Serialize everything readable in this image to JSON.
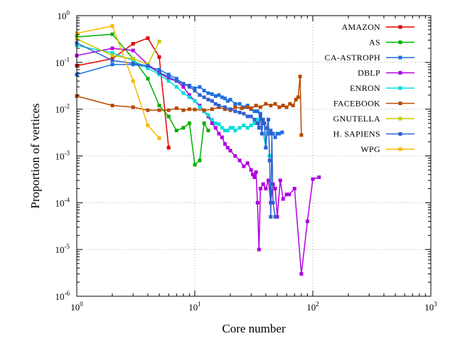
{
  "chart_data": {
    "type": "line",
    "title": "",
    "xlabel": "Core number",
    "ylabel": "Proportion of vertices",
    "xscale": "log",
    "yscale": "log",
    "xlim": [
      1,
      1000
    ],
    "ylim": [
      1e-06,
      1
    ],
    "grid": true,
    "legend_position": "top-right",
    "x_ticks": [
      {
        "base": "10",
        "exp": "0",
        "value": 1
      },
      {
        "base": "10",
        "exp": "1",
        "value": 10
      },
      {
        "base": "10",
        "exp": "2",
        "value": 100
      },
      {
        "base": "10",
        "exp": "3",
        "value": 1000
      }
    ],
    "y_ticks": [
      {
        "base": "10",
        "exp": "-6",
        "value": 1e-06
      },
      {
        "base": "10",
        "exp": "-5",
        "value": 1e-05
      },
      {
        "base": "10",
        "exp": "-4",
        "value": 0.0001
      },
      {
        "base": "10",
        "exp": "-3",
        "value": 0.001
      },
      {
        "base": "10",
        "exp": "-2",
        "value": 0.01
      },
      {
        "base": "10",
        "exp": "-1",
        "value": 0.1
      },
      {
        "base": "10",
        "exp": "0",
        "value": 1
      }
    ],
    "series": [
      {
        "name": "AMAZON",
        "color": "#e00000",
        "x": [
          1,
          2,
          3,
          4,
          5,
          6
        ],
        "y": [
          0.085,
          0.12,
          0.25,
          0.33,
          0.13,
          0.0015
        ]
      },
      {
        "name": "AS",
        "color": "#00b000",
        "x": [
          1,
          2,
          3,
          4,
          5,
          6,
          7,
          8,
          9,
          10,
          11,
          12,
          13
        ],
        "y": [
          0.35,
          0.4,
          0.12,
          0.045,
          0.012,
          0.007,
          0.0035,
          0.004,
          0.005,
          0.00065,
          0.0008,
          0.005,
          0.0035
        ]
      },
      {
        "name": "CA-ASTROPH",
        "color": "#1a6fe0",
        "x": [
          1,
          2,
          3,
          4,
          5,
          6,
          7,
          8,
          9,
          10,
          11,
          12,
          13,
          14,
          15,
          16,
          17,
          18,
          19,
          20,
          22,
          24,
          26,
          28,
          30,
          32,
          34,
          36,
          38,
          40,
          42,
          44,
          46,
          48,
          50,
          52,
          55
        ],
        "y": [
          0.055,
          0.09,
          0.09,
          0.08,
          0.07,
          0.055,
          0.045,
          0.035,
          0.032,
          0.028,
          0.03,
          0.025,
          0.022,
          0.021,
          0.019,
          0.02,
          0.018,
          0.017,
          0.015,
          0.016,
          0.013,
          0.013,
          0.011,
          0.012,
          0.01,
          0.009,
          0.009,
          0.007,
          0.005,
          0.004,
          0.003,
          0.0035,
          0.003,
          0.0025,
          0.003,
          0.003,
          0.0032
        ]
      },
      {
        "name": "DBLP",
        "color": "#b000e0",
        "x": [
          1,
          2,
          3,
          4,
          5,
          6,
          7,
          8,
          9,
          10,
          11,
          12,
          13,
          14,
          15,
          16,
          17,
          18,
          19,
          20,
          22,
          24,
          26,
          28,
          30,
          31,
          32,
          33,
          34,
          35,
          36,
          38,
          40,
          42,
          44,
          46,
          48,
          50,
          53,
          56,
          60,
          63,
          70,
          80,
          90,
          100,
          113
        ],
        "y": [
          0.14,
          0.2,
          0.18,
          0.09,
          0.06,
          0.045,
          0.04,
          0.03,
          0.02,
          0.015,
          0.012,
          0.009,
          0.007,
          0.005,
          0.004,
          0.003,
          0.0025,
          0.0018,
          0.0015,
          0.0013,
          0.001,
          0.0008,
          0.0006,
          0.0007,
          0.0005,
          0.0004,
          0.00035,
          0.00045,
          0.0001,
          1e-05,
          0.0002,
          0.00025,
          0.0002,
          0.0003,
          0.0001,
          0.00025,
          0.0002,
          5e-05,
          0.0003,
          0.00012,
          0.00015,
          0.00015,
          0.0002,
          3e-06,
          4e-05,
          0.00032,
          0.00035
        ]
      },
      {
        "name": "ENRON",
        "color": "#00dddd",
        "x": [
          1,
          2,
          3,
          4,
          5,
          6,
          7,
          8,
          9,
          10,
          11,
          12,
          13,
          14,
          15,
          16,
          17,
          18,
          19,
          20,
          21,
          22,
          24,
          26,
          28,
          30,
          32,
          34,
          36,
          38,
          40,
          42,
          43
        ],
        "y": [
          0.23,
          0.16,
          0.11,
          0.075,
          0.055,
          0.04,
          0.03,
          0.022,
          0.018,
          0.015,
          0.011,
          0.009,
          0.0075,
          0.006,
          0.005,
          0.0048,
          0.004,
          0.0035,
          0.0035,
          0.004,
          0.004,
          0.0035,
          0.004,
          0.0045,
          0.004,
          0.0045,
          0.005,
          0.006,
          0.004,
          0.003,
          0.0015,
          0.006,
          0.001
        ]
      },
      {
        "name": "FACEBOOK",
        "color": "#b84a00",
        "x": [
          1,
          2,
          3,
          4,
          5,
          6,
          7,
          8,
          9,
          10,
          12,
          14,
          16,
          18,
          20,
          22,
          25,
          28,
          30,
          33,
          36,
          40,
          44,
          48,
          52,
          56,
          60,
          64,
          68,
          72,
          75,
          78,
          80
        ],
        "y": [
          0.019,
          0.012,
          0.011,
          0.0095,
          0.0095,
          0.0095,
          0.0105,
          0.0095,
          0.01,
          0.0098,
          0.0095,
          0.01,
          0.011,
          0.01,
          0.0095,
          0.011,
          0.0105,
          0.011,
          0.0105,
          0.012,
          0.011,
          0.013,
          0.012,
          0.013,
          0.011,
          0.012,
          0.011,
          0.013,
          0.012,
          0.016,
          0.018,
          0.05,
          0.0028
        ]
      },
      {
        "name": "GNUTELLA",
        "color": "#c8c800",
        "x": [
          1,
          2,
          3,
          4,
          5
        ],
        "y": [
          0.32,
          0.14,
          0.12,
          0.09,
          0.28
        ]
      },
      {
        "name": "H. SAPIENS",
        "color": "#3060d0",
        "x": [
          1,
          2,
          3,
          4,
          5,
          6,
          7,
          8,
          9,
          10,
          11,
          12,
          13,
          14,
          15,
          16,
          18,
          20,
          22,
          24,
          26,
          28,
          30,
          32,
          34,
          35,
          36,
          37,
          38,
          39,
          40,
          41,
          42,
          43,
          44,
          45,
          46,
          48
        ],
        "y": [
          0.26,
          0.11,
          0.095,
          0.085,
          0.06,
          0.05,
          0.04,
          0.035,
          0.03,
          0.025,
          0.02,
          0.018,
          0.016,
          0.015,
          0.013,
          0.012,
          0.011,
          0.01,
          0.009,
          0.0085,
          0.008,
          0.007,
          0.007,
          0.006,
          0.005,
          0.004,
          0.008,
          0.003,
          0.006,
          0.005,
          0.0015,
          0.004,
          0.006,
          0.0008,
          5e-05,
          0.003,
          0.0001,
          5e-05
        ]
      },
      {
        "name": "WPG",
        "color": "#f8b800",
        "x": [
          1,
          2,
          3,
          4,
          5
        ],
        "y": [
          0.42,
          0.6,
          0.04,
          0.0045,
          0.0024
        ]
      }
    ]
  }
}
